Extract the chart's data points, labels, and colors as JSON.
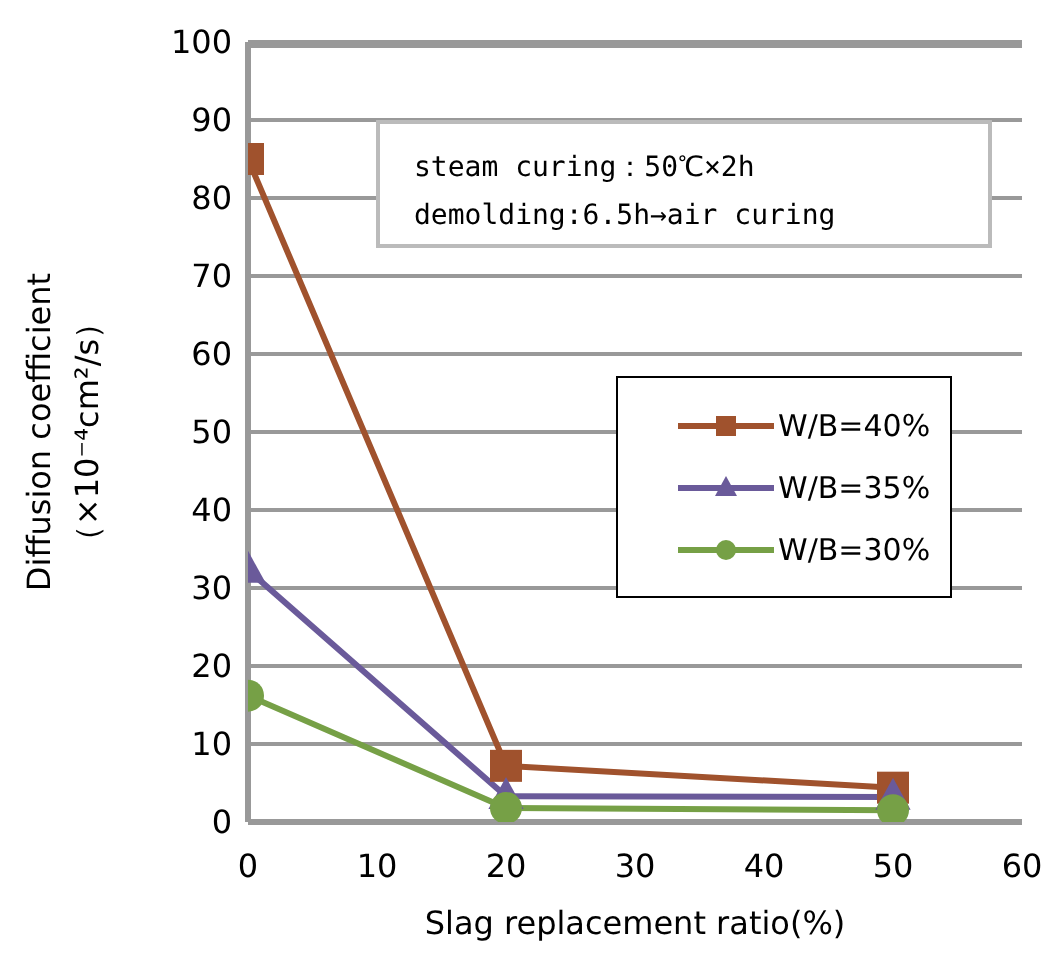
{
  "chart_data": {
    "type": "line",
    "xlabel": "Slag replacement ratio(%)",
    "ylabel": "Diffusion coefficient\n（×10⁻⁴cm²/s）",
    "x": [
      0,
      20,
      50
    ],
    "series": [
      {
        "name": "W/B=40%",
        "color": "#a0522d",
        "marker": "square",
        "values": [
          85,
          7.2,
          4.4
        ]
      },
      {
        "name": "W/B=35%",
        "color": "#6a5a9a",
        "marker": "triangle",
        "values": [
          32.3,
          3.3,
          3.2
        ]
      },
      {
        "name": "W/B=30%",
        "color": "#76a046",
        "marker": "circle",
        "values": [
          16.2,
          1.8,
          1.5
        ]
      }
    ],
    "xlim": [
      0,
      60
    ],
    "xticks": [
      0,
      10,
      20,
      30,
      40,
      50,
      60
    ],
    "ylim": [
      0,
      100
    ],
    "yticks": [
      0,
      10,
      20,
      30,
      40,
      50,
      60,
      70,
      80,
      90,
      100
    ],
    "grid": "y",
    "legend": "right",
    "line_style": "solid",
    "annotations": [
      "steam curing：50℃×2h",
      "demolding:6.5h→air curing"
    ]
  }
}
